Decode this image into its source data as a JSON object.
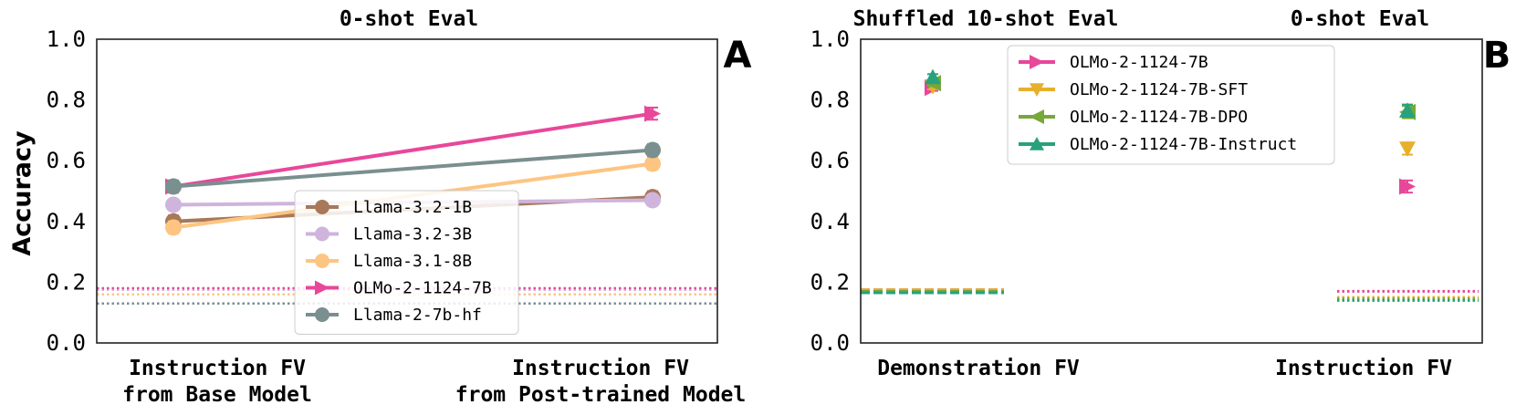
{
  "chart_data": [
    {
      "type": "line",
      "title": "0-shot Eval",
      "panel_label": "A",
      "ylabel": "Accuracy",
      "xlabel": "",
      "ylim": [
        0.0,
        1.0
      ],
      "yticks": [
        "0.0",
        "0.2",
        "0.4",
        "0.6",
        "0.8",
        "1.0"
      ],
      "categories": [
        [
          "Instruction FV",
          "from Base Model"
        ],
        [
          "Instruction FV",
          "from Post-trained Model"
        ]
      ],
      "legend_position": "lower-center",
      "series": [
        {
          "name": "Llama-3.2-1B",
          "color": "#a8785a",
          "marker": "circle",
          "values": [
            0.4,
            0.48
          ],
          "err": [
            0.02,
            0.02
          ],
          "baseline": null
        },
        {
          "name": "Llama-3.2-3B",
          "color": "#cfb4dd",
          "marker": "circle",
          "values": [
            0.455,
            0.47
          ],
          "err": [
            0.015,
            0.015
          ],
          "baseline": 0.175
        },
        {
          "name": "Llama-3.1-8B",
          "color": "#fdc581",
          "marker": "circle",
          "values": [
            0.38,
            0.59
          ],
          "err": [
            0.02,
            0.02
          ],
          "baseline": 0.16
        },
        {
          "name": "OLMo-2-1124-7B",
          "color": "#e8479a",
          "marker": "triangle-right",
          "values": [
            0.515,
            0.755
          ],
          "err": [
            0.02,
            0.02
          ],
          "baseline": 0.18
        },
        {
          "name": "Llama-2-7b-hf",
          "color": "#7a8f8f",
          "marker": "circle",
          "values": [
            0.515,
            0.635
          ],
          "err": [
            0.02,
            0.02
          ],
          "baseline": 0.13
        }
      ]
    },
    {
      "type": "scatter",
      "title_left": "Shuffled 10-shot Eval",
      "title_right": "0-shot Eval",
      "panel_label": "B",
      "ylim": [
        0.0,
        1.0
      ],
      "yticks": [
        "0.0",
        "0.2",
        "0.4",
        "0.6",
        "0.8",
        "1.0"
      ],
      "categories": [
        "Demonstration FV",
        "Instruction FV"
      ],
      "legend_position": "upper-center",
      "series": [
        {
          "name": "OLMo-2-1124-7B",
          "color": "#e8479a",
          "marker": "triangle-right",
          "values": [
            0.84,
            0.515
          ],
          "err": [
            0.01,
            0.02
          ],
          "baseline": [
            0.175,
            0.17
          ]
        },
        {
          "name": "OLMo-2-1124-7B-SFT",
          "color": "#e6b02d",
          "marker": "triangle-down",
          "values": [
            0.845,
            0.64
          ],
          "err": [
            0.01,
            0.02
          ],
          "baseline": [
            0.175,
            0.15
          ]
        },
        {
          "name": "OLMo-2-1124-7B-DPO",
          "color": "#76a83a",
          "marker": "triangle-left",
          "values": [
            0.855,
            0.76
          ],
          "err": [
            0.01,
            0.02
          ],
          "baseline": [
            0.17,
            0.145
          ]
        },
        {
          "name": "OLMo-2-1124-7B-Instruct",
          "color": "#28a17c",
          "marker": "triangle-up",
          "values": [
            0.875,
            0.765
          ],
          "err": [
            0.01,
            0.02
          ],
          "baseline": [
            0.165,
            0.14
          ]
        }
      ]
    }
  ]
}
